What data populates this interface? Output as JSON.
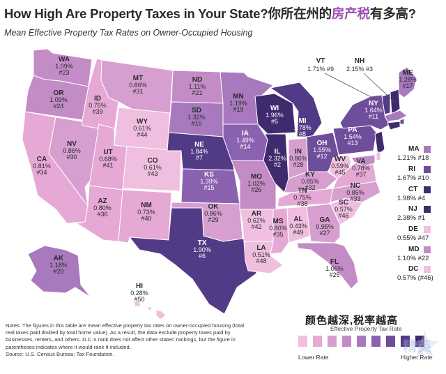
{
  "header": {
    "title_en": "How High Are Property Taxes in Your State?",
    "title_cn_a": "你所在州的",
    "title_cn_b": "房产税",
    "title_cn_c": "有多高?",
    "subtitle": "Mean Effective Property Tax Rates on Owner-Occupied Housing"
  },
  "colors": {
    "c1": "#f0bfe0",
    "c2": "#e6a8d4",
    "c3": "#d69fd0",
    "c4": "#c48cc7",
    "c5": "#a879bf",
    "c6": "#8b62b0",
    "c7": "#6e4d9b",
    "c8": "#523b86",
    "c9": "#3f2a6d",
    "border": "#ffffff"
  },
  "states": [
    {
      "abbr": "WA",
      "rate": "1.09%",
      "rank": "#23",
      "level": 4
    },
    {
      "abbr": "OR",
      "rate": "1.09%",
      "rank": "#24",
      "level": 4
    },
    {
      "abbr": "CA",
      "rate": "0.81%",
      "rank": "#34",
      "level": 2
    },
    {
      "abbr": "NV",
      "rate": "0.86%",
      "rank": "#30",
      "level": 3
    },
    {
      "abbr": "ID",
      "rate": "0.75%",
      "rank": "#39",
      "level": 2
    },
    {
      "abbr": "MT",
      "rate": "0.86%",
      "rank": "#31",
      "level": 3
    },
    {
      "abbr": "WY",
      "rate": "0.61%",
      "rank": "#44",
      "level": 1
    },
    {
      "abbr": "UT",
      "rate": "0.68%",
      "rank": "#41",
      "level": 2
    },
    {
      "abbr": "CO",
      "rate": "0.61%",
      "rank": "#43",
      "level": 1
    },
    {
      "abbr": "AZ",
      "rate": "0.80%",
      "rank": "#36",
      "level": 2
    },
    {
      "abbr": "NM",
      "rate": "0.73%",
      "rank": "#40",
      "level": 2
    },
    {
      "abbr": "ND",
      "rate": "1.11%",
      "rank": "#21",
      "level": 4
    },
    {
      "abbr": "SD",
      "rate": "1.32%",
      "rank": "#16",
      "level": 5
    },
    {
      "abbr": "NE",
      "rate": "1.84%",
      "rank": "#7",
      "level": 8
    },
    {
      "abbr": "KS",
      "rate": "1.39%",
      "rank": "#15",
      "level": 6
    },
    {
      "abbr": "OK",
      "rate": "0.86%",
      "rank": "#29",
      "level": 3
    },
    {
      "abbr": "TX",
      "rate": "1.90%",
      "rank": "#6",
      "level": 8
    },
    {
      "abbr": "MN",
      "rate": "1.19%",
      "rank": "#19",
      "level": 5
    },
    {
      "abbr": "IA",
      "rate": "1.49%",
      "rank": "#14",
      "level": 6
    },
    {
      "abbr": "MO",
      "rate": "1.02%",
      "rank": "#26",
      "level": 4
    },
    {
      "abbr": "AR",
      "rate": "0.62%",
      "rank": "#42",
      "level": 1
    },
    {
      "abbr": "LA",
      "rate": "0.51%",
      "rank": "#48",
      "level": 1
    },
    {
      "abbr": "WI",
      "rate": "1.96%",
      "rank": "#5",
      "level": 9
    },
    {
      "abbr": "IL",
      "rate": "2.32%",
      "rank": "#2",
      "level": 9
    },
    {
      "abbr": "MI",
      "rate": "1.78%",
      "rank": "#8",
      "level": 8
    },
    {
      "abbr": "IN",
      "rate": "0.86%",
      "rank": "#28",
      "level": 3
    },
    {
      "abbr": "OH",
      "rate": "1.55%",
      "rank": "#12",
      "level": 7
    },
    {
      "abbr": "KY",
      "rate": "0.85%",
      "rank": "#32",
      "level": 3
    },
    {
      "abbr": "TN",
      "rate": "0.75%",
      "rank": "#38",
      "level": 2
    },
    {
      "abbr": "MS",
      "rate": "0.80%",
      "rank": "#35",
      "level": 2
    },
    {
      "abbr": "AL",
      "rate": "0.43%",
      "rank": "#49",
      "level": 1
    },
    {
      "abbr": "GA",
      "rate": "0.95%",
      "rank": "#27",
      "level": 3
    },
    {
      "abbr": "FL",
      "rate": "1.06%",
      "rank": "#25",
      "level": 4
    },
    {
      "abbr": "SC",
      "rate": "0.57%",
      "rank": "#46",
      "level": 1
    },
    {
      "abbr": "NC",
      "rate": "0.85%",
      "rank": "#33",
      "level": 3
    },
    {
      "abbr": "VA",
      "rate": "0.78%",
      "rank": "#37",
      "level": 2
    },
    {
      "abbr": "WV",
      "rate": "0.59%",
      "rank": "#45",
      "level": 1
    },
    {
      "abbr": "PA",
      "rate": "1.54%",
      "rank": "#13",
      "level": 7
    },
    {
      "abbr": "NY",
      "rate": "1.64%",
      "rank": "#11",
      "level": 7
    },
    {
      "abbr": "ME",
      "rate": "1.28%",
      "rank": "#17",
      "level": 5
    },
    {
      "abbr": "AK",
      "rate": "1.18%",
      "rank": "#20",
      "level": 5
    },
    {
      "abbr": "HI",
      "rate": "0.28%",
      "rank": "#50",
      "level": 1
    }
  ],
  "callouts": [
    {
      "abbr": "VT",
      "rate": "1.71%",
      "rank": "#9"
    },
    {
      "abbr": "NH",
      "rate": "2.15%",
      "rank": "#3"
    }
  ],
  "side_list": [
    {
      "abbr": "MA",
      "text": "1.21% #18",
      "level": 5
    },
    {
      "abbr": "RI",
      "text": "1.67% #10",
      "level": 7
    },
    {
      "abbr": "CT",
      "text": "1.98% #4",
      "level": 9
    },
    {
      "abbr": "NJ",
      "text": "2.38% #1",
      "level": 9
    },
    {
      "abbr": "DE",
      "text": "0.55% #47",
      "level": 1
    },
    {
      "abbr": "MD",
      "text": "1.10% #22",
      "level": 4
    },
    {
      "abbr": "DC",
      "text": "0.57% (#46)",
      "level": 1
    }
  ],
  "notes": "Notes: The figures in this table are mean effective property tax rates on owner-occupied housing (total real taxes paid divided by total home value). As a result, the data exclude property taxes paid by businesses, renters, and others. D.C.'s rank does not affect other states' rankings, but the figure in parentheses indicates where it would rank if included.",
  "source": "Source: U.S. Census Bureau; Tax Foundation.",
  "legend": {
    "slogan": "颜色越深,税率越高",
    "title": "Effective Property Tax Rate",
    "low": "Lower Rate",
    "high": "Higher Rate"
  },
  "watermark": "精英"
}
